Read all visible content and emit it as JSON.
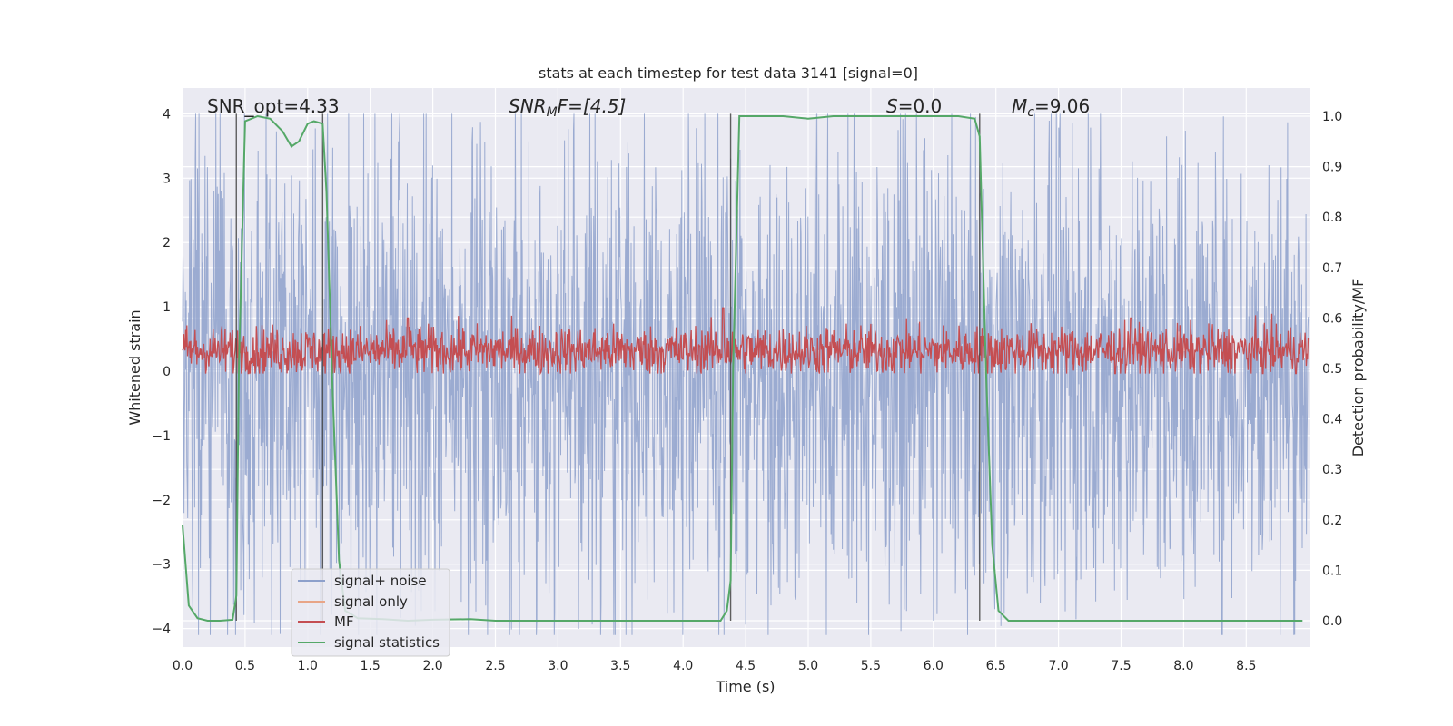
{
  "chart_data": {
    "type": "line",
    "title": "stats at each timestep for test data 3141 [signal=0]",
    "xlabel": "Time (s)",
    "ylabel": "Whitened strain",
    "ylabel_right": "Detection probability/MF",
    "xlim": [
      0.0,
      9.0
    ],
    "ylim": [
      -4.3,
      4.4
    ],
    "ylim_right": [
      -0.05,
      1.05
    ],
    "x_ticks": [
      "0.0",
      "0.5",
      "1.0",
      "1.5",
      "2.0",
      "2.5",
      "3.0",
      "3.5",
      "4.0",
      "4.5",
      "5.0",
      "5.5",
      "6.0",
      "6.5",
      "7.0",
      "7.5",
      "8.0",
      "8.5"
    ],
    "y_ticks": [
      "−4",
      "−3",
      "−2",
      "−1",
      "0",
      "1",
      "2",
      "3",
      "4"
    ],
    "y_ticks_right": [
      "0.0",
      "0.1",
      "0.2",
      "0.3",
      "0.4",
      "0.5",
      "0.6",
      "0.7",
      "0.8",
      "0.9",
      "1.0"
    ],
    "annotations": {
      "snr_opt": "SNR_opt=4.33",
      "snr_mf_var": "SNR",
      "snr_mf_sub": "M",
      "snr_mf_rest": "F=[4.5]",
      "s_var": "S",
      "s_rest": "=0.0",
      "mc_var": "M",
      "mc_sub": "c",
      "mc_rest": "=9.06"
    },
    "legend": {
      "placement": "bottom-left",
      "entries": [
        {
          "label": "signal+ noise",
          "color": "#8da0cb"
        },
        {
          "label": "signal only",
          "color": "#e8a587"
        },
        {
          "label": "MF",
          "color": "#c44e52"
        },
        {
          "label": "signal statistics",
          "color": "#55a868"
        }
      ]
    },
    "vertical_lines_x": [
      0.43,
      1.12,
      4.38,
      6.37
    ],
    "series": [
      {
        "name": "signal statistics",
        "axis": "right",
        "x": [
          0.0,
          0.05,
          0.12,
          0.2,
          0.3,
          0.4,
          0.43,
          0.45,
          0.5,
          0.6,
          0.7,
          0.8,
          0.87,
          0.93,
          1.0,
          1.05,
          1.12,
          1.15,
          1.2,
          1.25,
          1.3,
          1.4,
          1.6,
          1.8,
          2.0,
          2.3,
          2.5,
          3.0,
          3.5,
          4.0,
          4.3,
          4.35,
          4.38,
          4.4,
          4.45,
          4.6,
          4.8,
          5.0,
          5.2,
          5.5,
          6.0,
          6.2,
          6.33,
          6.37,
          6.42,
          6.47,
          6.52,
          6.6,
          7.0,
          7.5,
          8.0,
          8.5,
          8.95
        ],
        "y": [
          0.19,
          0.03,
          0.005,
          0.0,
          0.0,
          0.002,
          0.05,
          0.5,
          0.99,
          1.0,
          0.995,
          0.97,
          0.94,
          0.95,
          0.985,
          0.99,
          0.985,
          0.85,
          0.45,
          0.12,
          0.02,
          0.005,
          0.003,
          0.0,
          0.002,
          0.003,
          0.0,
          0.0,
          0.0,
          0.0,
          0.0,
          0.02,
          0.08,
          0.5,
          1.0,
          1.0,
          1.0,
          0.995,
          1.0,
          1.0,
          1.0,
          1.0,
          0.995,
          0.96,
          0.5,
          0.15,
          0.02,
          0.0,
          0.0,
          0.0,
          0.0,
          0.0,
          0.0
        ]
      }
    ],
    "noise_series": {
      "name": "signal+ noise",
      "axis": "left",
      "description": "dense whitened strain trace",
      "typical_range": [
        -2.5,
        2.5
      ],
      "extreme_range": [
        -4.1,
        4.0
      ]
    },
    "mf_series": {
      "name": "MF",
      "axis": "right",
      "description": "matched-filter output",
      "typical_range": [
        0.5,
        0.57
      ],
      "spikes": [
        [
          1.8,
          0.6
        ],
        [
          4.32,
          0.62
        ],
        [
          7.58,
          0.6
        ]
      ]
    }
  }
}
